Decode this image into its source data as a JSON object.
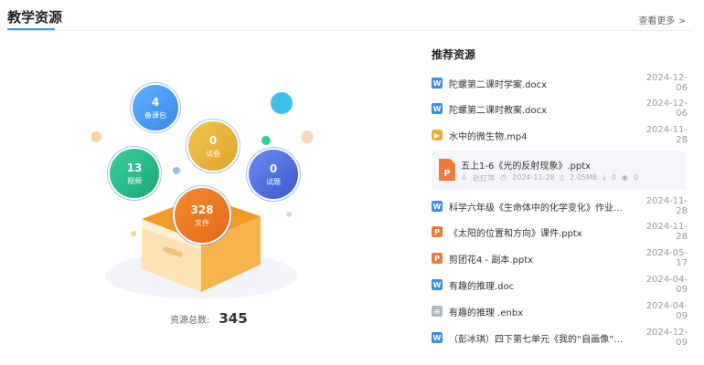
{
  "header": {
    "title": "教学资源",
    "more": "查看更多 >"
  },
  "stats": [
    {
      "value": "4",
      "label": "备课包",
      "color": "#4a9ff0"
    },
    {
      "value": "0",
      "label": "试卷",
      "color": "#e9b33a"
    },
    {
      "value": "13",
      "label": "视频",
      "color": "#2bb58a"
    },
    {
      "value": "0",
      "label": "试题",
      "color": "#4468d8"
    },
    {
      "value": "328",
      "label": "文件",
      "color": "#ee7a25"
    }
  ],
  "total": {
    "label": "资源总数:",
    "value": "345"
  },
  "recommend": {
    "title": "推荐资源",
    "items": [
      {
        "icon": "W",
        "type": "word",
        "name": "陀螺第二课时学案.docx",
        "date": "2024-12-06"
      },
      {
        "icon": "W",
        "type": "word",
        "name": "陀螺第二课时教案.docx",
        "date": "2024-12-06"
      },
      {
        "icon": "▶",
        "type": "video",
        "name": "水中的微生物.mp4",
        "date": "2024-11-28"
      },
      {
        "icon": "W",
        "type": "word",
        "name": "科学六年级《生命体中的化学变化》作业设计....",
        "date": "2024-11-28"
      },
      {
        "icon": "P",
        "type": "ppt",
        "name": "《太阳的位置和方向》课件.pptx",
        "date": "2024-11-28"
      },
      {
        "icon": "P",
        "type": "ppt",
        "name": "剪团花4 - 副本.pptx",
        "date": "2024-05-17"
      },
      {
        "icon": "W",
        "type": "word",
        "name": "有趣的推理.doc",
        "date": "2024-04-09"
      },
      {
        "icon": "≡",
        "type": "enbx",
        "name": "有趣的推理 .enbx",
        "date": "2024-04-09"
      },
      {
        "icon": "W",
        "type": "word",
        "name": "（彭冰琪）四下第七单元《我的“自画像”》...",
        "date": "2024-12-09"
      }
    ],
    "featured": {
      "icon": "P",
      "name": "五上1-6《光的反射现象》.pptx",
      "author": "赵红萍",
      "date": "2024-11-28",
      "size": "2.05MB",
      "downloads": "0",
      "views": "0"
    }
  },
  "colors": {
    "word": "#3a8ee6",
    "video": "#f2a93b",
    "ppt": "#ee7a3a",
    "enbx": "#b0b8c4"
  }
}
